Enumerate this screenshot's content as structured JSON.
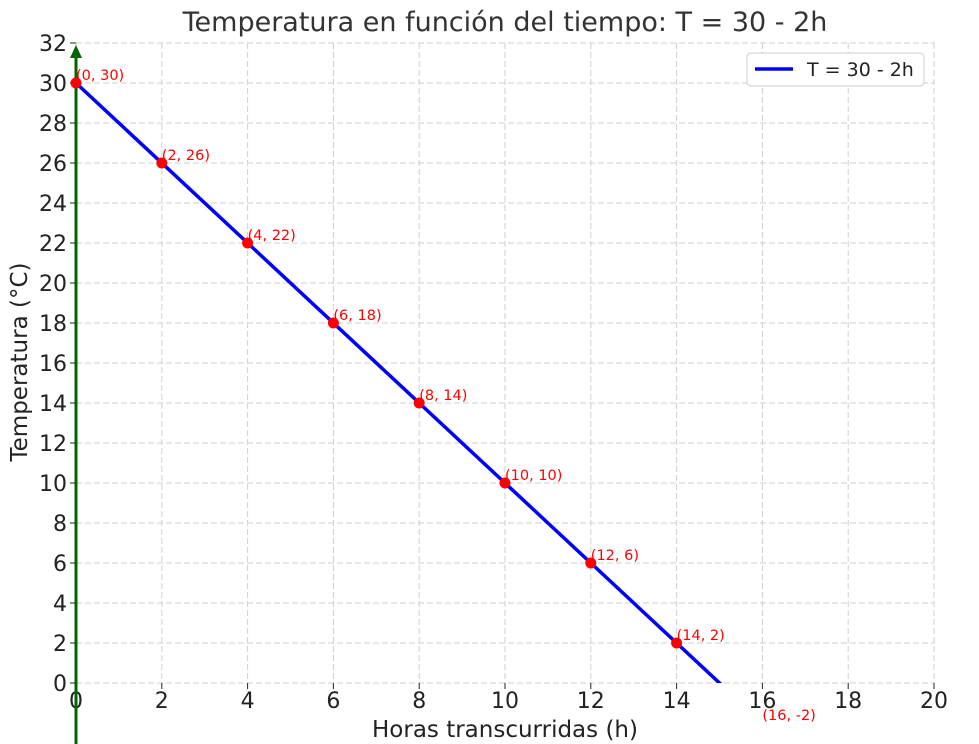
{
  "chart_data": {
    "type": "line",
    "title": "Temperatura en función del tiempo: T = 30 - 2h",
    "xlabel": "Horas transcurridas (h)",
    "ylabel": "Temperatura (°C)",
    "xlim": [
      0,
      20
    ],
    "ylim": [
      0,
      32
    ],
    "x_ticks": [
      "0",
      "2",
      "4",
      "6",
      "8",
      "10",
      "12",
      "14",
      "16",
      "18",
      "20"
    ],
    "y_ticks": [
      "0",
      "2",
      "4",
      "6",
      "8",
      "10",
      "12",
      "14",
      "16",
      "18",
      "20",
      "22",
      "24",
      "26",
      "28",
      "30",
      "32"
    ],
    "grid": true,
    "legend_position": "top-right",
    "series": [
      {
        "name": "T = 30 - 2h",
        "color": "#0000ff",
        "x": [
          0,
          16
        ],
        "y": [
          30,
          -2
        ]
      }
    ],
    "points": {
      "color": "#ff0000",
      "x": [
        0,
        2,
        4,
        6,
        8,
        10,
        12,
        14
      ],
      "y": [
        30,
        26,
        22,
        18,
        14,
        10,
        6,
        2
      ]
    },
    "annotations": [
      "(0, 30)",
      "(2, 26)",
      "(4, 22)",
      "(6, 18)",
      "(8, 14)",
      "(10, 10)",
      "(12, 6)",
      "(14, 2)",
      "(16, -2)"
    ],
    "annotation_positions": [
      [
        0,
        30
      ],
      [
        2,
        26
      ],
      [
        4,
        22
      ],
      [
        6,
        18
      ],
      [
        8,
        14
      ],
      [
        10,
        10
      ],
      [
        12,
        6
      ],
      [
        14,
        2
      ],
      [
        16,
        -2
      ]
    ],
    "axis_arrow_color": "#006400"
  }
}
